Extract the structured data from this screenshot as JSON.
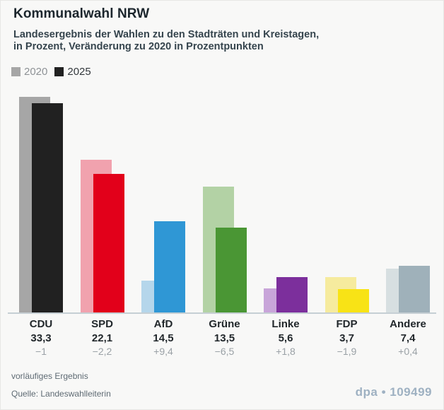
{
  "header": {
    "title": "Kommunalwahl NRW",
    "subtitle_line1": "Landesergebnis der Wahlen zu den Stadträten und Kreistagen,",
    "subtitle_line2": "in Prozent, Veränderung zu 2020 in Prozentpunkten"
  },
  "legend": {
    "items": [
      {
        "label": "2020",
        "color": "#a6a6a6"
      },
      {
        "label": "2025",
        "color": "#212121"
      }
    ]
  },
  "chart_data": {
    "type": "bar",
    "title": "Kommunalwahl NRW",
    "xlabel": "",
    "ylabel": "Prozent",
    "ylim": [
      0,
      36
    ],
    "grid": false,
    "legend_position": "top-left",
    "categories": [
      "CDU",
      "SPD",
      "AfD",
      "Grüne",
      "Linke",
      "FDP",
      "Andere"
    ],
    "series": [
      {
        "name": "2020",
        "values": [
          34.3,
          24.3,
          5.1,
          20.0,
          3.8,
          5.6,
          7.0
        ],
        "colors": [
          "#a6a6a6",
          "#f1a2ae",
          "#b5d6eb",
          "#b3d2a5",
          "#c8a5d9",
          "#f6eb9e",
          "#d7dfe1"
        ]
      },
      {
        "name": "2025",
        "values": [
          33.3,
          22.1,
          14.5,
          13.5,
          5.6,
          3.7,
          7.4
        ],
        "colors": [
          "#212121",
          "#e2001a",
          "#2f97d5",
          "#4a9634",
          "#7c2f9c",
          "#f8e316",
          "#9fb1ba"
        ]
      }
    ],
    "value_labels": [
      "33,3",
      "22,1",
      "14,5",
      "13,5",
      "5,6",
      "3,7",
      "7,4"
    ],
    "change_labels": [
      "−1",
      "−2,2",
      "+9,4",
      "−6,5",
      "+1,8",
      "−1,9",
      "+0,4"
    ]
  },
  "footer": {
    "note": "vorläufiges Ergebnis",
    "source": "Quelle: Landeswahlleiterin",
    "credit": "dpa • 109499"
  }
}
